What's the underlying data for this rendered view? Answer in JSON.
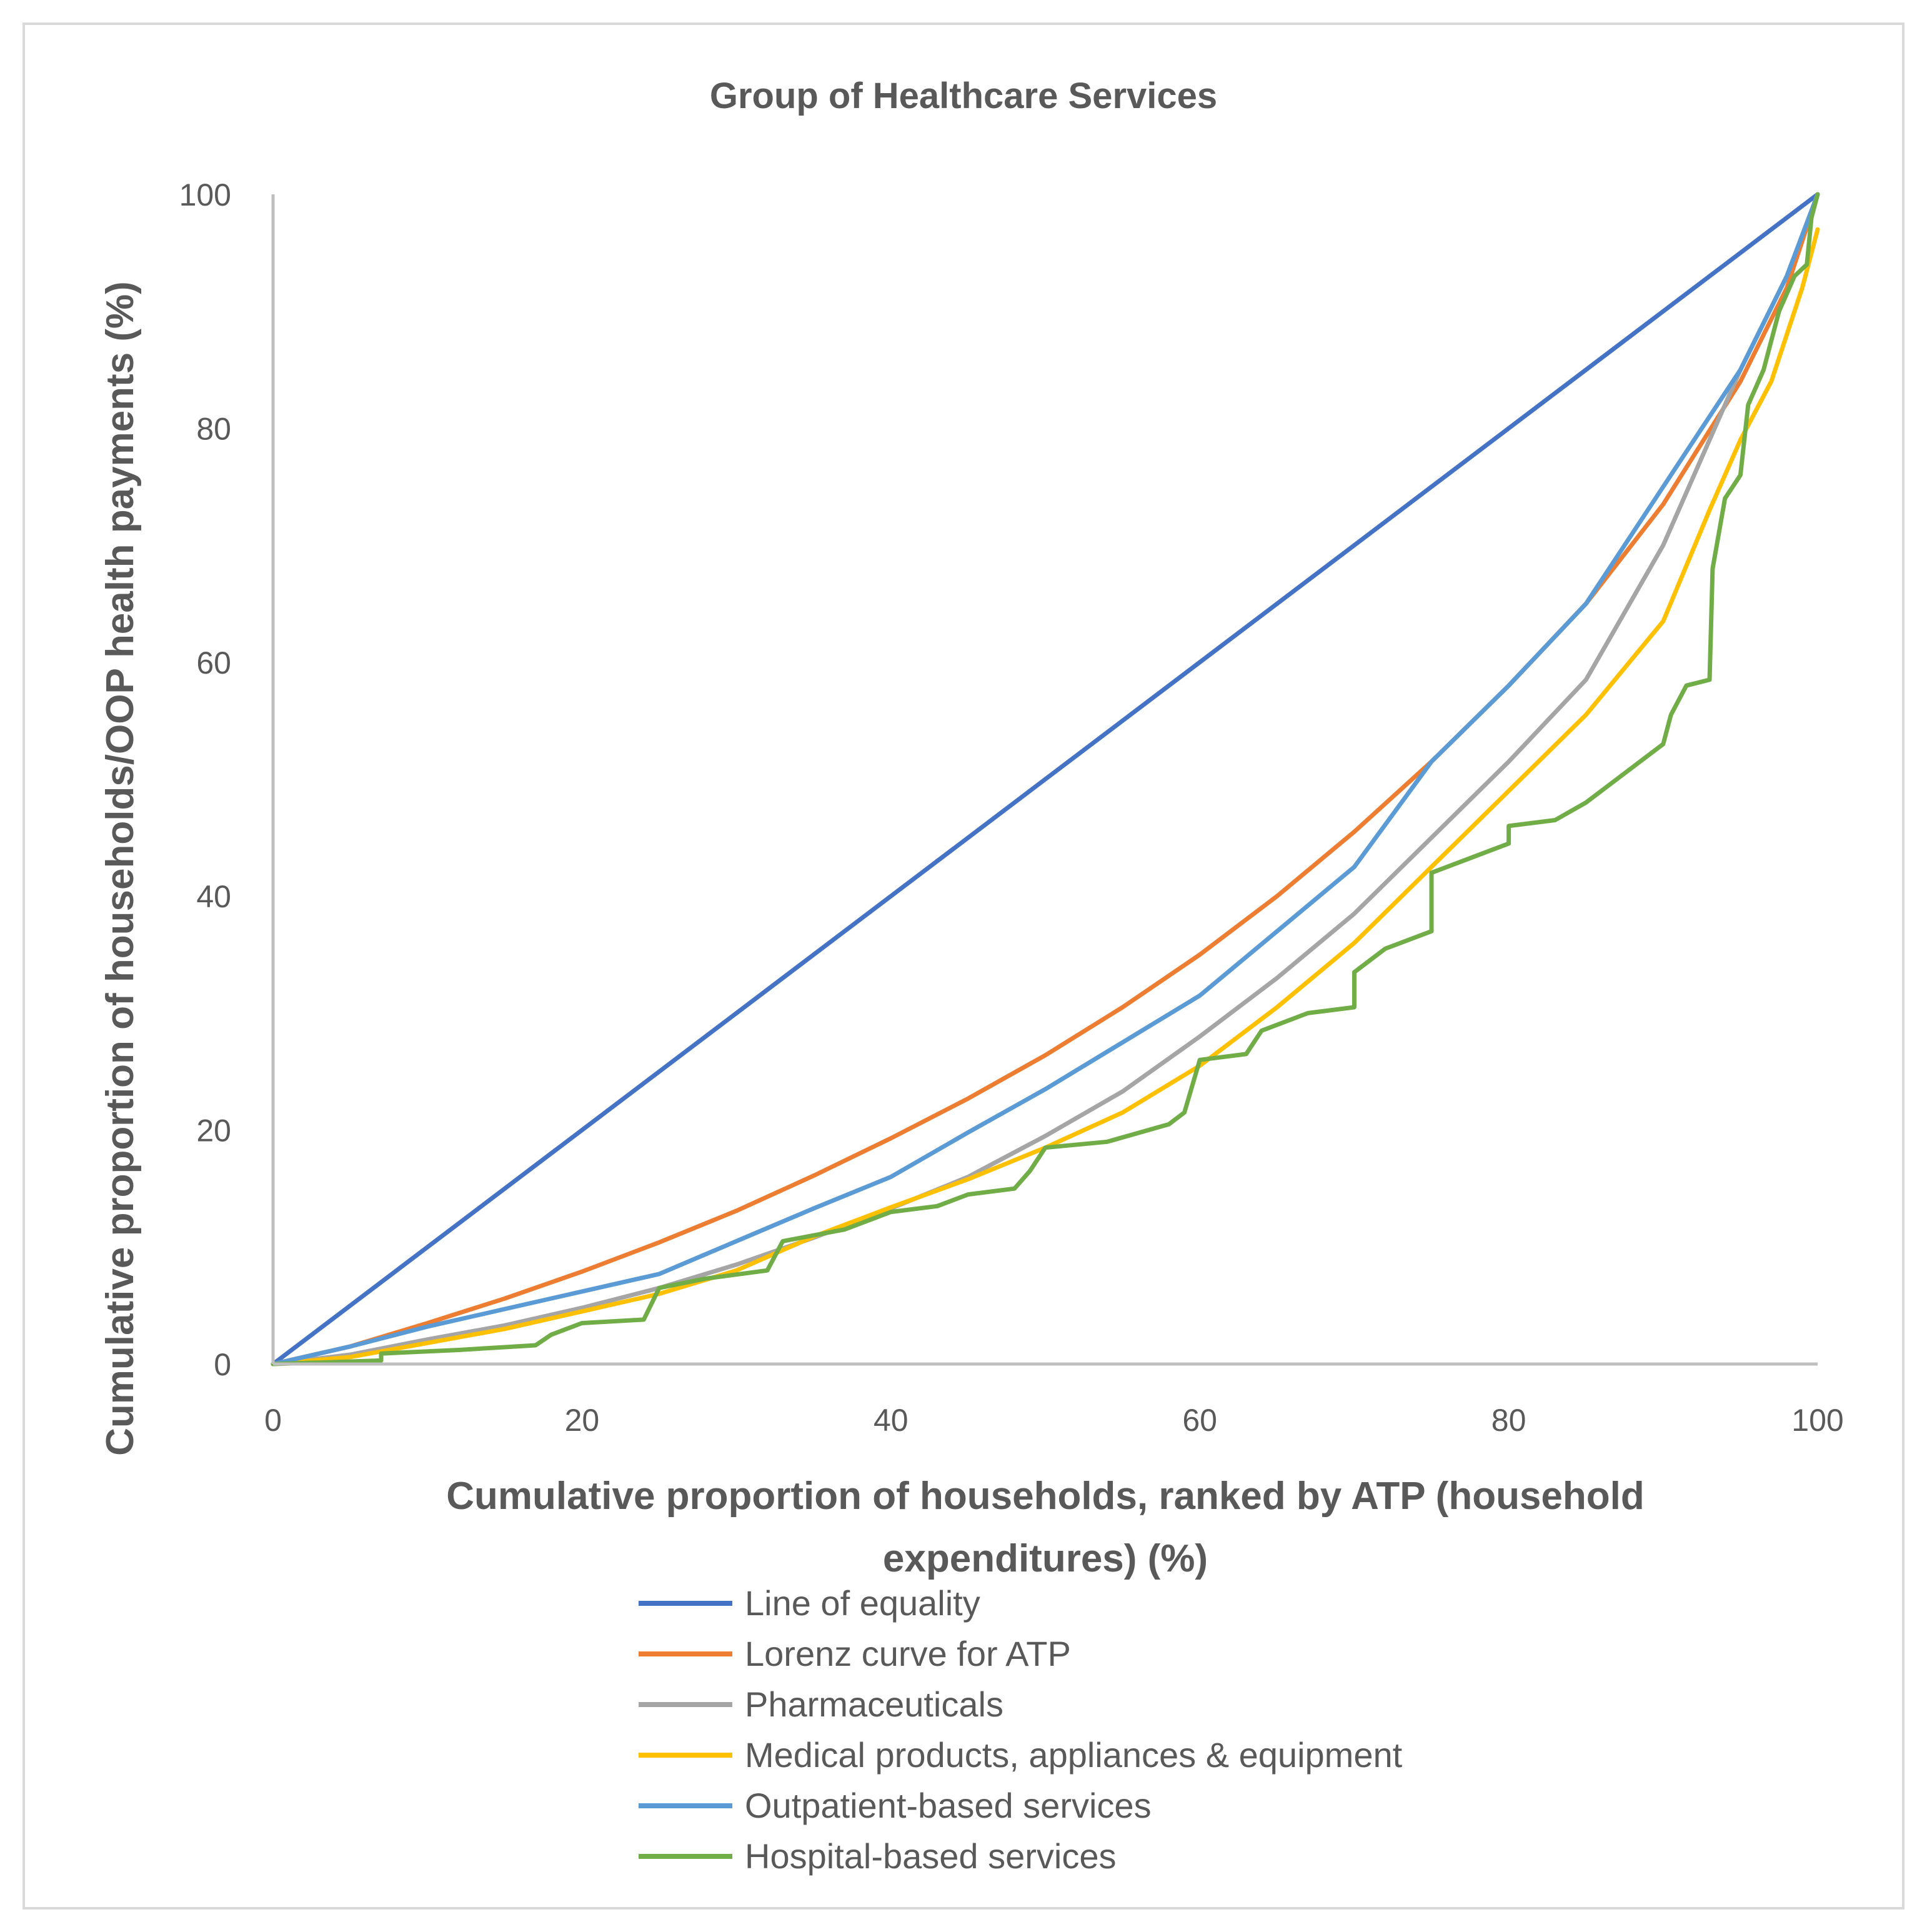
{
  "chart_data": {
    "type": "line",
    "title": "Group of Healthcare Services",
    "xlabel_lines": [
      "Cumulative proportion of households, ranked by ATP (household",
      "expenditures) (%)"
    ],
    "ylabel": "Cumulative proportion of households/OOP health payments  (%)",
    "xlim": [
      0,
      100
    ],
    "ylim": [
      0,
      100
    ],
    "x_ticks": [
      0,
      20,
      40,
      60,
      80,
      100
    ],
    "y_ticks": [
      0,
      20,
      40,
      60,
      80,
      100
    ],
    "x_tick_labels": [
      "0",
      "20",
      "40",
      "60",
      "80",
      "100"
    ],
    "y_tick_labels": [
      "0",
      "20",
      "40",
      "60",
      "80",
      "100"
    ],
    "grid": false,
    "legend_position": "bottom",
    "series": [
      {
        "name": "Line of equality",
        "color": "#4472C4",
        "points": [
          [
            0,
            0
          ],
          [
            100,
            100
          ]
        ]
      },
      {
        "name": "Lorenz curve for ATP",
        "color": "#ED7D31",
        "points": [
          [
            0,
            0
          ],
          [
            5,
            1.5
          ],
          [
            10,
            3.5
          ],
          [
            15,
            5.6
          ],
          [
            20,
            7.9
          ],
          [
            25,
            10.4
          ],
          [
            30,
            13.1
          ],
          [
            35,
            16.1
          ],
          [
            40,
            19.3
          ],
          [
            45,
            22.7
          ],
          [
            50,
            26.4
          ],
          [
            55,
            30.5
          ],
          [
            60,
            35.0
          ],
          [
            65,
            40.0
          ],
          [
            70,
            45.5
          ],
          [
            75,
            51.5
          ],
          [
            80,
            58.0
          ],
          [
            85,
            65.0
          ],
          [
            90,
            73.5
          ],
          [
            95,
            84.0
          ],
          [
            98,
            92.0
          ],
          [
            100,
            100
          ]
        ]
      },
      {
        "name": "Pharmaceuticals",
        "color": "#A5A5A5",
        "points": [
          [
            0,
            0
          ],
          [
            5,
            0.8
          ],
          [
            10,
            2.1
          ],
          [
            15,
            3.3
          ],
          [
            20,
            4.8
          ],
          [
            25,
            6.5
          ],
          [
            30,
            8.5
          ],
          [
            35,
            10.8
          ],
          [
            40,
            13.3
          ],
          [
            45,
            16.0
          ],
          [
            50,
            19.5
          ],
          [
            55,
            23.3
          ],
          [
            60,
            28.0
          ],
          [
            65,
            33.0
          ],
          [
            70,
            38.5
          ],
          [
            75,
            45.0
          ],
          [
            80,
            51.5
          ],
          [
            85,
            58.5
          ],
          [
            90,
            70.0
          ],
          [
            95,
            85.0
          ],
          [
            98,
            93.0
          ],
          [
            100,
            100
          ]
        ]
      },
      {
        "name": "Medical products, appliances & equipment",
        "color": "#FFC000",
        "points": [
          [
            0,
            0
          ],
          [
            5,
            0.6
          ],
          [
            10,
            1.8
          ],
          [
            15,
            3.0
          ],
          [
            20,
            4.5
          ],
          [
            25,
            6.0
          ],
          [
            30,
            8.0
          ],
          [
            35,
            10.9
          ],
          [
            40,
            13.4
          ],
          [
            45,
            15.8
          ],
          [
            50,
            18.5
          ],
          [
            55,
            21.5
          ],
          [
            60,
            25.5
          ],
          [
            65,
            30.5
          ],
          [
            70,
            36.0
          ],
          [
            75,
            42.5
          ],
          [
            80,
            49.0
          ],
          [
            85,
            55.5
          ],
          [
            90,
            63.5
          ],
          [
            93,
            73.0
          ],
          [
            95,
            79.0
          ],
          [
            97,
            84.0
          ],
          [
            99,
            92.0
          ],
          [
            100,
            97.0
          ]
        ]
      },
      {
        "name": "Outpatient-based services",
        "color": "#5B9BD5",
        "points": [
          [
            0,
            0
          ],
          [
            5,
            1.5
          ],
          [
            10,
            3.2
          ],
          [
            15,
            4.7
          ],
          [
            20,
            6.2
          ],
          [
            25,
            7.7
          ],
          [
            30,
            10.5
          ],
          [
            35,
            13.3
          ],
          [
            40,
            16.0
          ],
          [
            45,
            19.8
          ],
          [
            50,
            23.5
          ],
          [
            55,
            27.5
          ],
          [
            60,
            31.5
          ],
          [
            65,
            37.0
          ],
          [
            70,
            42.5
          ],
          [
            75,
            51.5
          ],
          [
            80,
            58.0
          ],
          [
            85,
            65.0
          ],
          [
            90,
            75.0
          ],
          [
            95,
            85.0
          ],
          [
            98,
            93.0
          ],
          [
            100,
            100
          ]
        ]
      },
      {
        "name": "Hospital-based services",
        "color": "#70AD47",
        "points": [
          [
            0,
            0
          ],
          [
            7,
            0.3
          ],
          [
            7,
            0.9
          ],
          [
            12,
            1.2
          ],
          [
            17,
            1.6
          ],
          [
            18,
            2.5
          ],
          [
            20,
            3.5
          ],
          [
            24,
            3.8
          ],
          [
            25,
            6.5
          ],
          [
            28,
            7.3
          ],
          [
            32,
            8.0
          ],
          [
            33,
            10.5
          ],
          [
            37,
            11.5
          ],
          [
            40,
            13.0
          ],
          [
            43,
            13.5
          ],
          [
            45,
            14.5
          ],
          [
            48,
            15.0
          ],
          [
            49,
            16.5
          ],
          [
            50,
            18.5
          ],
          [
            54,
            19.0
          ],
          [
            58,
            20.5
          ],
          [
            59,
            21.5
          ],
          [
            60,
            26.0
          ],
          [
            63,
            26.5
          ],
          [
            64,
            28.5
          ],
          [
            67,
            30.0
          ],
          [
            70,
            30.5
          ],
          [
            70,
            33.5
          ],
          [
            72,
            35.5
          ],
          [
            75,
            37.0
          ],
          [
            75,
            42.0
          ],
          [
            78,
            43.5
          ],
          [
            80,
            44.5
          ],
          [
            80,
            46.0
          ],
          [
            83,
            46.5
          ],
          [
            85,
            48.0
          ],
          [
            87,
            50.0
          ],
          [
            90,
            53.0
          ],
          [
            90.5,
            55.5
          ],
          [
            91.5,
            58.0
          ],
          [
            93,
            58.5
          ],
          [
            93.2,
            68.0
          ],
          [
            94,
            74.0
          ],
          [
            95,
            76.0
          ],
          [
            95.5,
            82.0
          ],
          [
            96.5,
            85.0
          ],
          [
            97.5,
            90.0
          ],
          [
            98.5,
            93.0
          ],
          [
            99.3,
            94.0
          ],
          [
            99.6,
            98.0
          ],
          [
            100,
            100
          ]
        ]
      }
    ]
  }
}
